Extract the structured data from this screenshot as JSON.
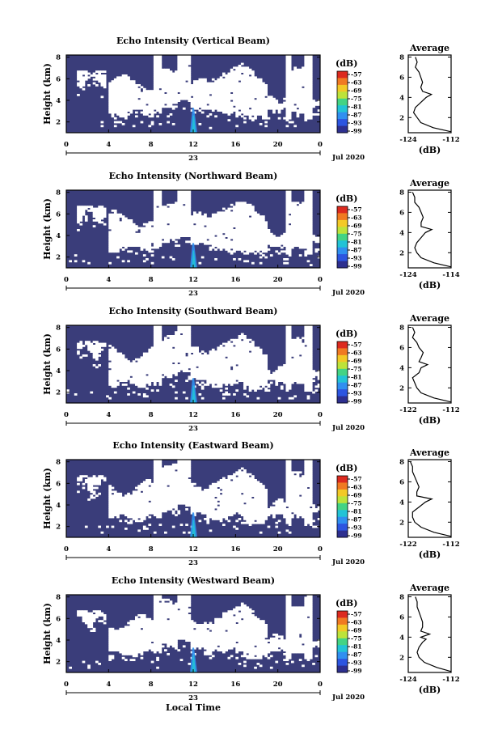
{
  "chart_data": [
    {
      "type": "heatmap",
      "title": "Echo Intensity (Vertical Beam)",
      "ylabel": "Height (km)",
      "yticks": [
        "2",
        "4",
        "6",
        "8"
      ],
      "ylim": [
        1,
        8.2
      ],
      "xticks": [
        "0",
        "4",
        "8",
        "12",
        "16",
        "20",
        "0"
      ],
      "xlim": [
        0,
        24
      ],
      "date_day": "23",
      "date_label": "Jul 2020",
      "colorbar": {
        "label": "(dB)",
        "ticks": [
          "-57",
          "-63",
          "-69",
          "-75",
          "-81",
          "-87",
          "-93",
          "-99"
        ]
      },
      "profile": {
        "title": "Average",
        "xlabel": "(dB)",
        "xticks": [
          "-124",
          "-112"
        ],
        "xlim": [
          -124,
          -112
        ],
        "yticks": [
          "2",
          "4",
          "6",
          "8"
        ],
        "ylim": [
          0.5,
          8.2
        ],
        "heights": [
          0.6,
          1,
          1.5,
          2,
          2.5,
          3,
          3.5,
          4,
          4.3,
          4.6,
          5,
          5.5,
          6,
          6.5,
          7,
          7.5,
          8
        ],
        "values": [
          -112,
          -117,
          -120.5,
          -121.5,
          -122.5,
          -122,
          -120.5,
          -119,
          -117.5,
          -120,
          -120.5,
          -120,
          -120.5,
          -121,
          -122,
          -121.5,
          -122
        ]
      }
    },
    {
      "type": "heatmap",
      "title": "Echo Intensity (Northward Beam)",
      "ylabel": "Height (km)",
      "yticks": [
        "2",
        "4",
        "6",
        "8"
      ],
      "ylim": [
        1,
        8.2
      ],
      "xticks": [
        "0",
        "4",
        "8",
        "12",
        "16",
        "20",
        "0"
      ],
      "xlim": [
        0,
        24
      ],
      "date_day": "23",
      "date_label": "Jul 2020",
      "colorbar": {
        "label": "(dB)",
        "ticks": [
          "-57",
          "-63",
          "-69",
          "-75",
          "-81",
          "-87",
          "-93",
          "-99"
        ]
      },
      "profile": {
        "title": "Average",
        "xlabel": "(dB)",
        "xticks": [
          "-124",
          "-114"
        ],
        "xlim": [
          -124,
          -114
        ],
        "yticks": [
          "2",
          "4",
          "6",
          "8"
        ],
        "ylim": [
          0.5,
          8.2
        ],
        "heights": [
          0.6,
          1,
          1.5,
          2,
          2.5,
          3,
          3.5,
          4,
          4.3,
          4.6,
          5,
          5.5,
          6,
          6.5,
          7,
          7.5,
          8
        ],
        "values": [
          -114,
          -118,
          -121,
          -122,
          -122.5,
          -122,
          -121,
          -120,
          -118.5,
          -121,
          -121,
          -120.5,
          -121,
          -121.5,
          -122.5,
          -122.5,
          -123
        ]
      }
    },
    {
      "type": "heatmap",
      "title": "Echo Intensity (Southward Beam)",
      "ylabel": "Height (km)",
      "yticks": [
        "2",
        "4",
        "6",
        "8"
      ],
      "ylim": [
        1,
        8.2
      ],
      "xticks": [
        "0",
        "4",
        "8",
        "12",
        "16",
        "20",
        "0"
      ],
      "xlim": [
        0,
        24
      ],
      "date_day": "23",
      "date_label": "Jul 2020",
      "colorbar": {
        "label": "(dB)",
        "ticks": [
          "-57",
          "-63",
          "-69",
          "-75",
          "-81",
          "-87",
          "-93",
          "-99"
        ]
      },
      "profile": {
        "title": "Average",
        "xlabel": "(dB)",
        "xticks": [
          "-122",
          "-112"
        ],
        "xlim": [
          -122,
          -112
        ],
        "yticks": [
          "2",
          "4",
          "6",
          "8"
        ],
        "ylim": [
          0.5,
          8.2
        ],
        "heights": [
          0.6,
          1,
          1.5,
          2,
          2.5,
          3,
          3.5,
          4,
          4.3,
          4.6,
          5,
          5.5,
          6,
          6.5,
          7,
          7.5,
          8
        ],
        "values": [
          -112,
          -116,
          -119,
          -120,
          -120.5,
          -121,
          -119.5,
          -119,
          -117.5,
          -119.5,
          -119,
          -118.5,
          -119.5,
          -120,
          -121,
          -120.5,
          -121
        ]
      }
    },
    {
      "type": "heatmap",
      "title": "Echo Intensity (Eastward Beam)",
      "ylabel": "Height (km)",
      "yticks": [
        "2",
        "4",
        "6",
        "8"
      ],
      "ylim": [
        1,
        8.2
      ],
      "xticks": [
        "0",
        "4",
        "8",
        "12",
        "16",
        "20",
        "0"
      ],
      "xlim": [
        0,
        24
      ],
      "date_day": "23",
      "date_label": "Jul 2020",
      "colorbar": {
        "label": "(dB)",
        "ticks": [
          "-57",
          "-63",
          "-69",
          "-75",
          "-81",
          "-87",
          "-93",
          "-99"
        ]
      },
      "profile": {
        "title": "Average",
        "xlabel": "(dB)",
        "xticks": [
          "-122",
          "-112"
        ],
        "xlim": [
          -122,
          -112
        ],
        "yticks": [
          "2",
          "4",
          "6",
          "8"
        ],
        "ylim": [
          0.5,
          8.2
        ],
        "heights": [
          0.6,
          1,
          1.5,
          2,
          2.5,
          3,
          3.5,
          4,
          4.3,
          4.6,
          5,
          5.5,
          6,
          6.5,
          7,
          7.5,
          8
        ],
        "values": [
          -112,
          -116,
          -119,
          -120.5,
          -121,
          -121,
          -119.5,
          -118,
          -116.5,
          -120,
          -120,
          -119.5,
          -120,
          -120.5,
          -121,
          -121,
          -121.5
        ]
      }
    },
    {
      "type": "heatmap",
      "title": "Echo Intensity (Westward Beam)",
      "ylabel": "Height (km)",
      "yticks": [
        "2",
        "4",
        "6",
        "8"
      ],
      "ylim": [
        1,
        8.2
      ],
      "xticks": [
        "0",
        "4",
        "8",
        "12",
        "16",
        "20",
        "0"
      ],
      "xlim": [
        0,
        24
      ],
      "date_day": "23",
      "date_label": "Jul 2020",
      "xlabel": "Local Time",
      "colorbar": {
        "label": "(dB)",
        "ticks": [
          "-57",
          "-63",
          "-69",
          "-75",
          "-81",
          "-87",
          "-93",
          "-99"
        ]
      },
      "profile": {
        "title": "Average",
        "xlabel": "(dB)",
        "xticks": [
          "-124",
          "-112"
        ],
        "xlim": [
          -124,
          -112
        ],
        "yticks": [
          "2",
          "4",
          "6",
          "8"
        ],
        "ylim": [
          0.5,
          8.2
        ],
        "heights": [
          0.6,
          1,
          1.5,
          2,
          2.5,
          3,
          3.5,
          3.8,
          4,
          4.3,
          4.6,
          5,
          5.5,
          6,
          6.5,
          7,
          7.5,
          8
        ],
        "values": [
          -112,
          -116,
          -119.5,
          -121,
          -121.5,
          -121,
          -120,
          -119,
          -120.5,
          -118,
          -120.5,
          -120,
          -120,
          -120.5,
          -121,
          -121.5,
          -121.5,
          -122
        ]
      }
    }
  ],
  "colors": {
    "background": "#3a3d7a",
    "clear": "#ffffff",
    "colorbar": [
      "#dc2a1f",
      "#f07a22",
      "#f3c926",
      "#bde33a",
      "#43d384",
      "#22c3d6",
      "#2f8ff0",
      "#2c55e0",
      "#2d2f8f"
    ]
  }
}
